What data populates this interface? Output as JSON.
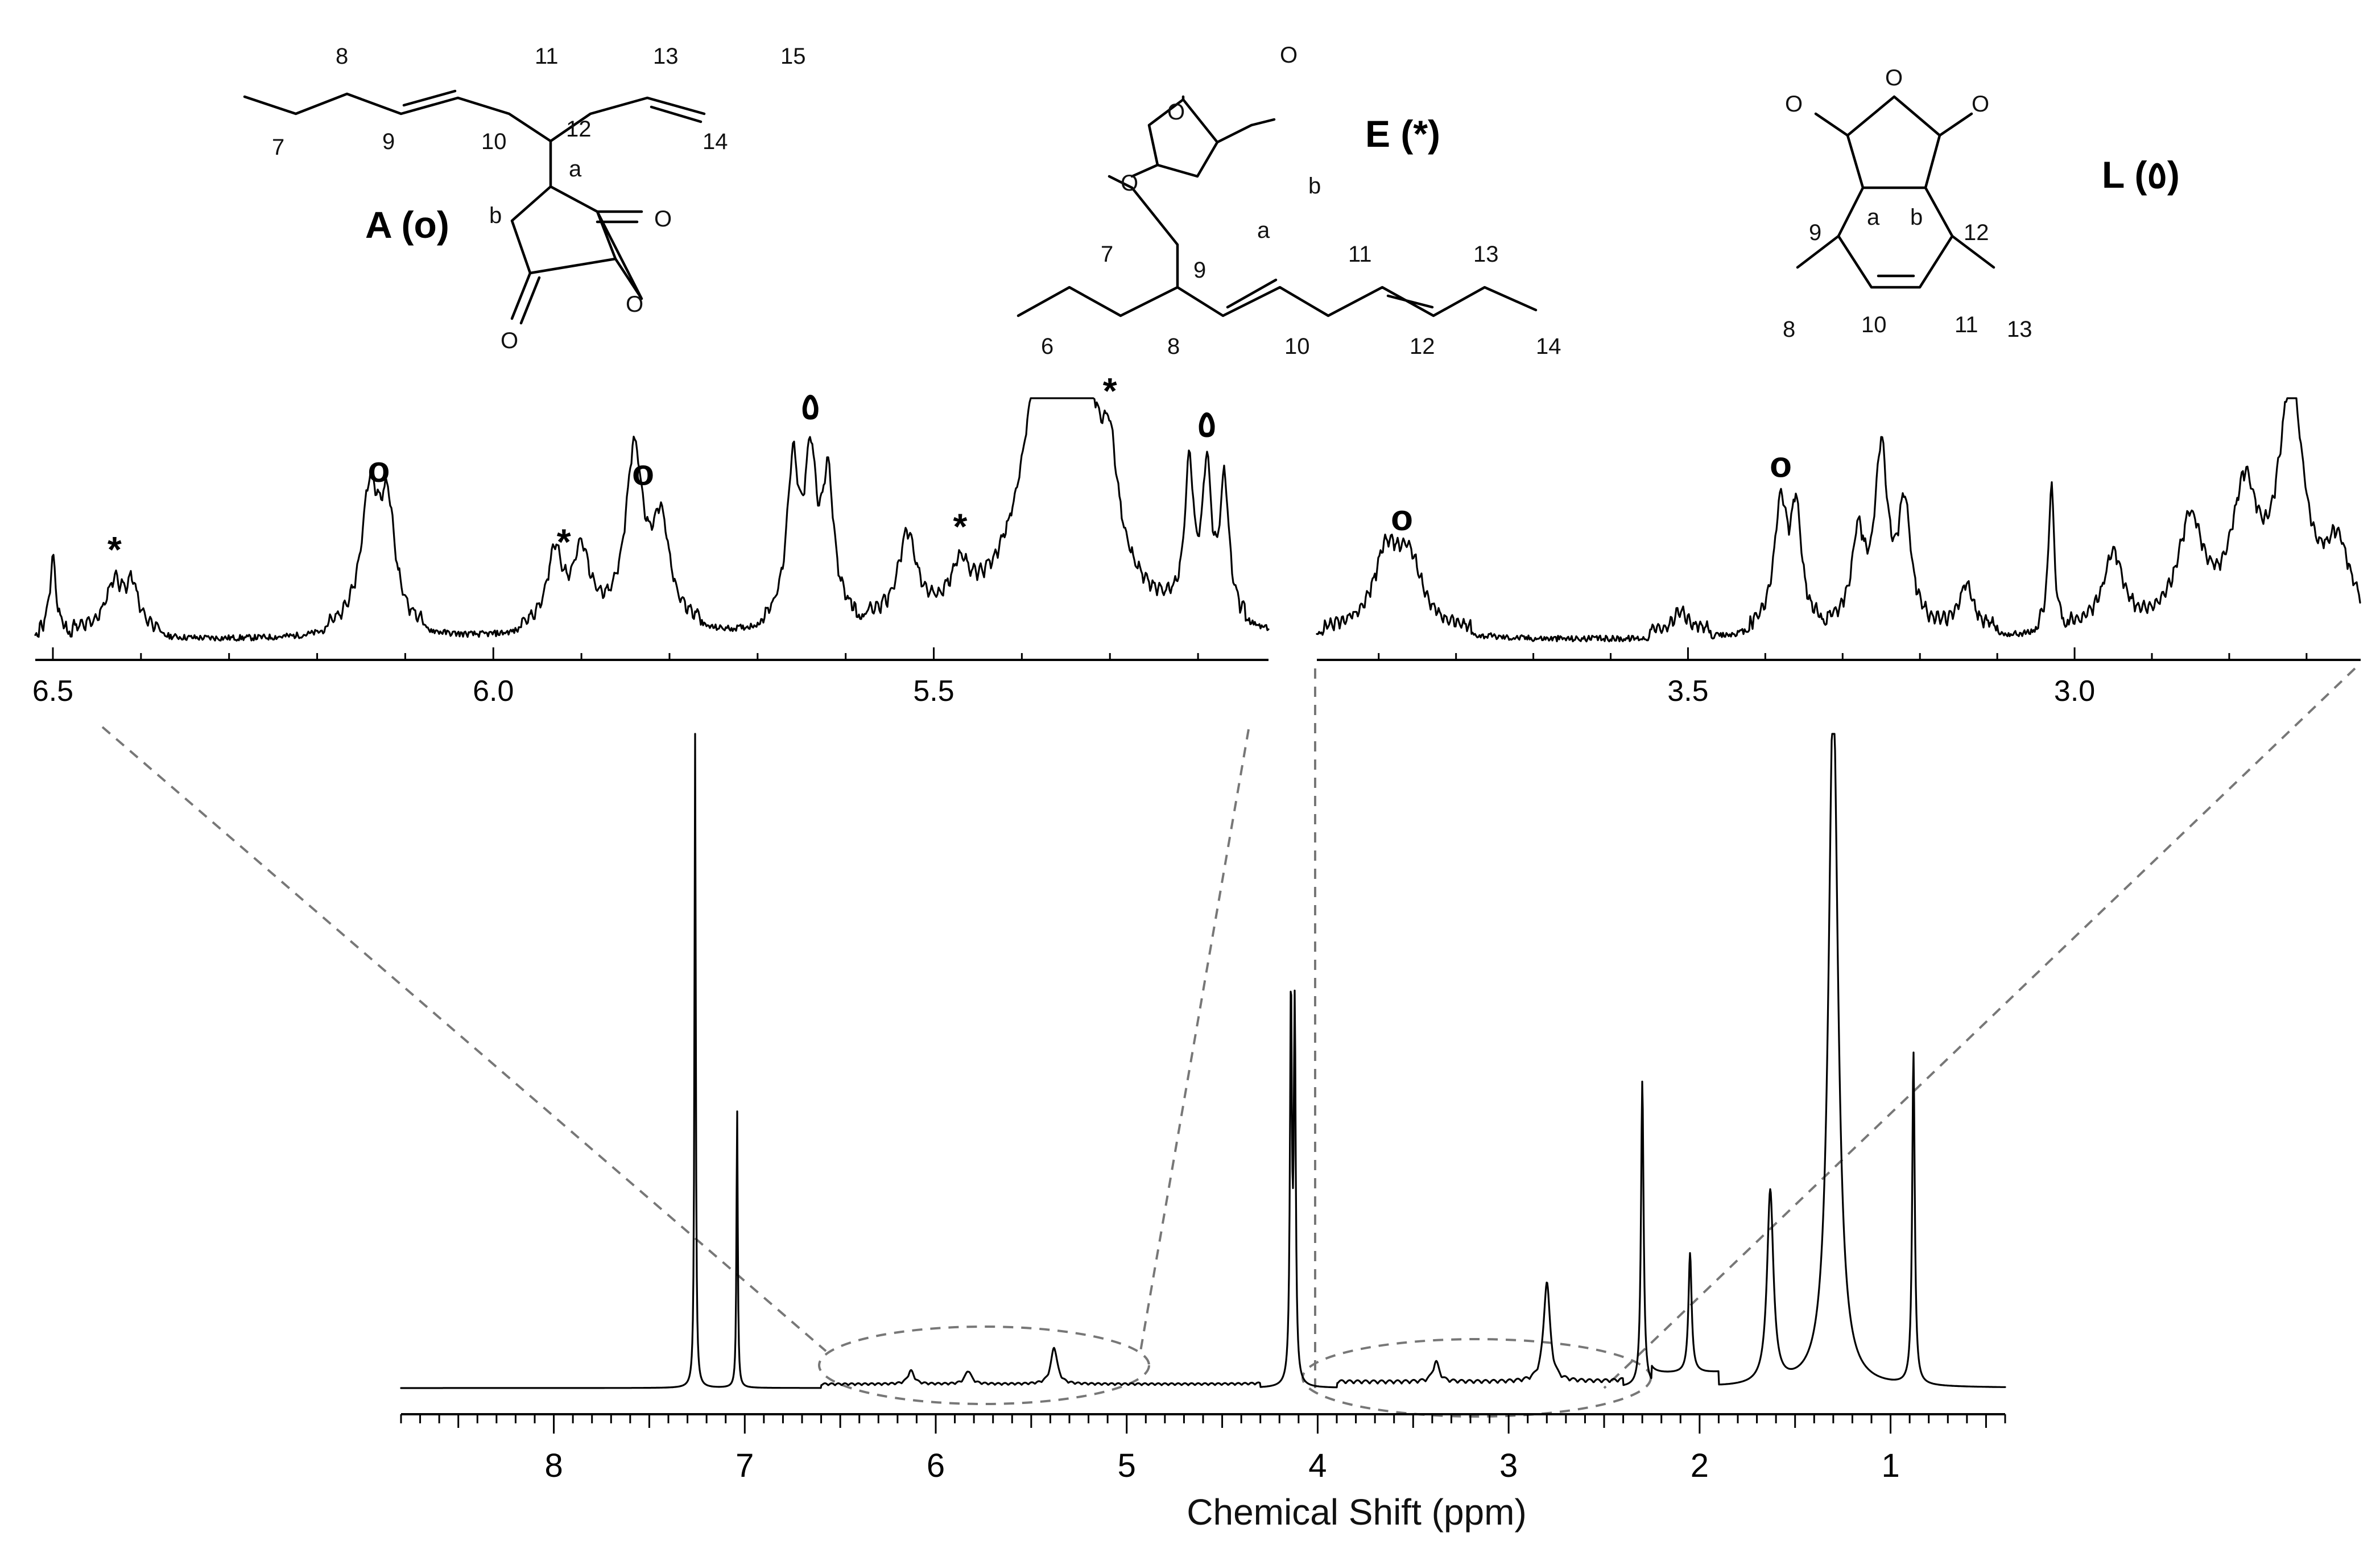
{
  "chart_data": {
    "type": "line",
    "xlabel": "Chemical Shift (ppm)",
    "xlim": [
      8.8,
      0.4
    ],
    "x_ticks": [
      "8",
      "7",
      "6",
      "5",
      "4",
      "3",
      "2",
      "1"
    ],
    "peaks_main": [
      {
        "ppm": 7.26,
        "intensity": 1.0,
        "width": 0.004
      },
      {
        "ppm": 7.04,
        "intensity": 0.42,
        "width": 0.004
      },
      {
        "ppm": 4.14,
        "intensity": 0.58,
        "width": 0.006
      },
      {
        "ppm": 4.12,
        "intensity": 0.55,
        "width": 0.006
      },
      {
        "ppm": 5.38,
        "intensity": 0.055,
        "width": 0.02
      },
      {
        "ppm": 5.83,
        "intensity": 0.02,
        "width": 0.02
      },
      {
        "ppm": 6.13,
        "intensity": 0.02,
        "width": 0.02
      },
      {
        "ppm": 2.8,
        "intensity": 0.15,
        "width": 0.02
      },
      {
        "ppm": 3.38,
        "intensity": 0.03,
        "width": 0.02
      },
      {
        "ppm": 2.3,
        "intensity": 0.46,
        "width": 0.008
      },
      {
        "ppm": 2.05,
        "intensity": 0.18,
        "width": 0.01
      },
      {
        "ppm": 1.63,
        "intensity": 0.29,
        "width": 0.02
      },
      {
        "ppm": 1.3,
        "intensity": 1.05,
        "width": 0.03
      },
      {
        "ppm": 0.88,
        "intensity": 0.5,
        "width": 0.008
      }
    ],
    "inset_left": {
      "xlim": [
        6.52,
        5.12
      ],
      "x_ticks": [
        "6.5",
        "6.0",
        "5.5"
      ]
    },
    "inset_right": {
      "xlim": [
        3.98,
        2.63
      ],
      "x_ticks": [
        "3.5",
        "3.0"
      ]
    },
    "peak_markers": [
      {
        "inset": "left",
        "ppm": 6.43,
        "label": "*"
      },
      {
        "inset": "left",
        "ppm": 6.13,
        "label": "o"
      },
      {
        "inset": "left",
        "ppm": 5.92,
        "label": "*"
      },
      {
        "inset": "left",
        "ppm": 5.83,
        "label": "o"
      },
      {
        "inset": "left",
        "ppm": 5.64,
        "label": "٥"
      },
      {
        "inset": "left",
        "ppm": 5.47,
        "label": "*"
      },
      {
        "inset": "left",
        "ppm": 5.3,
        "label": "*"
      },
      {
        "inset": "left",
        "ppm": 5.19,
        "label": "٥"
      },
      {
        "inset": "right",
        "ppm": 3.87,
        "label": "o"
      },
      {
        "inset": "right",
        "ppm": 3.38,
        "label": "o"
      }
    ]
  },
  "structures": {
    "A": {
      "name": "A (o)",
      "labels": [
        "8",
        "11",
        "13",
        "15",
        "7",
        "9",
        "10",
        "12",
        "14",
        "a",
        "b"
      ]
    },
    "E": {
      "name": "E (*)",
      "labels": [
        "b",
        "a",
        "7",
        "9",
        "11",
        "13",
        "6",
        "8",
        "10",
        "12",
        "14"
      ]
    },
    "L": {
      "name": "L (٥)",
      "labels": [
        "a",
        "b",
        "9",
        "12",
        "8",
        "10",
        "11",
        "13"
      ]
    }
  },
  "atoms": {
    "O": "O"
  }
}
